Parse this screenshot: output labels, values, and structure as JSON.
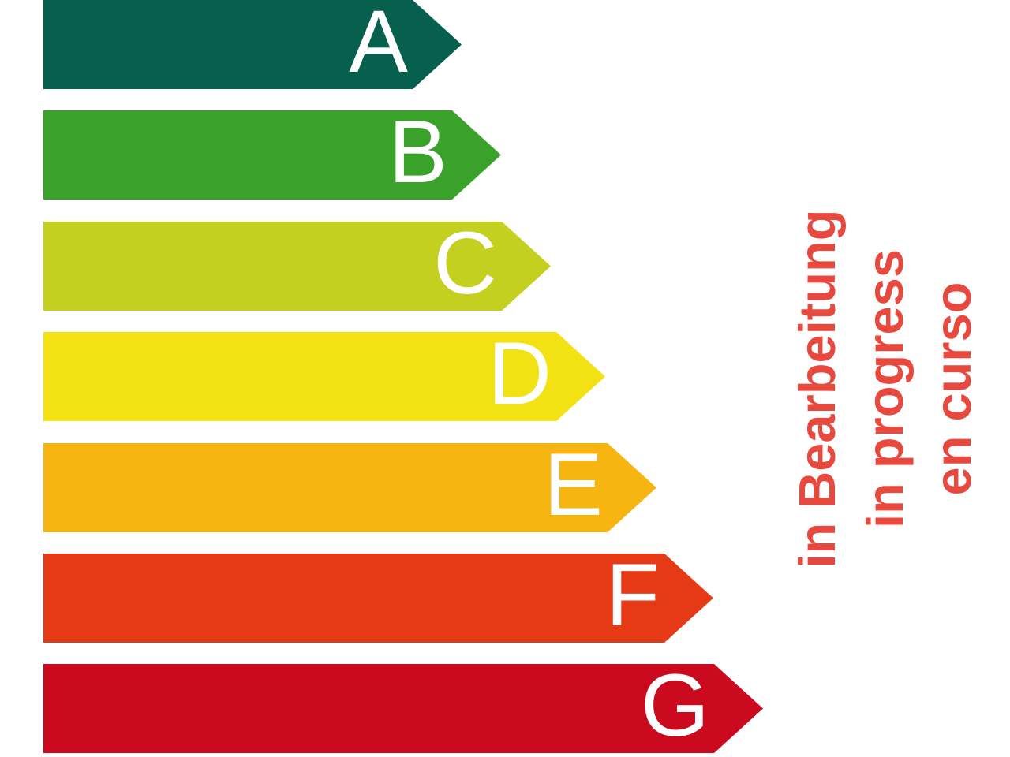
{
  "chart_data": {
    "type": "bar",
    "orientation": "horizontal",
    "description_visible": false,
    "categories": [
      "A",
      "B",
      "C",
      "D",
      "E",
      "F",
      "G"
    ],
    "values": [
      530,
      580,
      643,
      712,
      777,
      849,
      912
    ],
    "unit": "px-arrow-length",
    "colors": [
      "#07604d",
      "#3aa22a",
      "#c3d01f",
      "#f2e214",
      "#f7b512",
      "#e63a17",
      "#cb0a1f"
    ],
    "label_color": "#ffffff",
    "bar_thickness": 113,
    "bar_pitch": 140,
    "left_origin": 55,
    "tip_length": 62,
    "legend": "none",
    "grid": false,
    "annotation": {
      "lines": [
        "in Bearbeitung",
        "in progress",
        "en curso"
      ],
      "color": "#e8493f",
      "rotation_deg": -90
    }
  }
}
